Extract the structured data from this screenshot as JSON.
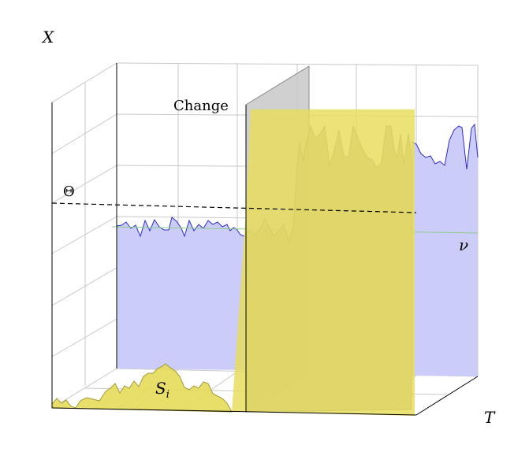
{
  "labels": {
    "x_axis": "X",
    "t_axis": "T",
    "theta": "Θ",
    "change": "Change",
    "nu": "ν",
    "s_i": "S",
    "s_i_sub": "i"
  },
  "colors": {
    "background_signal_fill": "#ccccf8",
    "background_signal_line": "#2b2bd6",
    "mean_line": "#88cc88",
    "threshold_line": "#000000",
    "highlight_fill": "#e6dc5a",
    "change_plane": "#c8c8c8",
    "grid": "#bdbdbd",
    "frame": "#000000"
  }
}
